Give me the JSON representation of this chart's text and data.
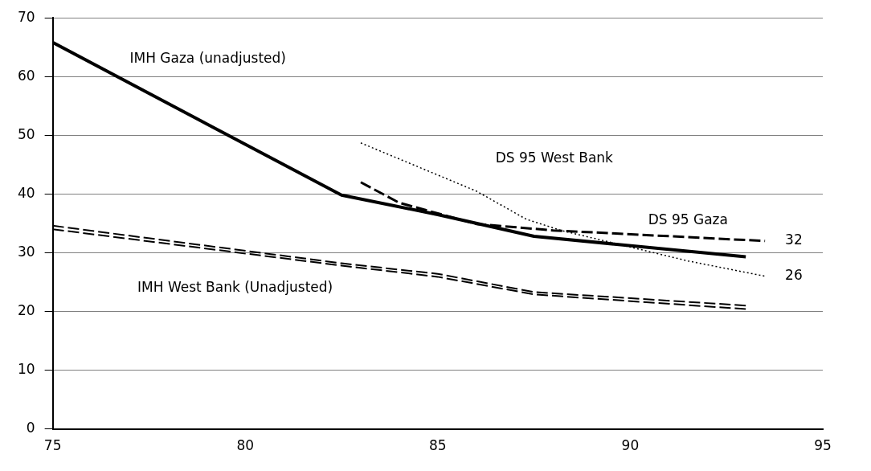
{
  "chart_data": {
    "type": "line",
    "xlim": [
      75,
      95
    ],
    "xticks": [
      75,
      80,
      85,
      90,
      95
    ],
    "ylim": [
      0,
      70
    ],
    "yticks": [
      0,
      10,
      20,
      30,
      40,
      50,
      60,
      70
    ],
    "grid": "y",
    "legend": false,
    "marker": "none",
    "series": [
      {
        "name": "IMH Gaza (unadjusted)",
        "color": "#000000",
        "line_style": "solid",
        "x": [
          75,
          82.5,
          85,
          87.5,
          93
        ],
        "values": [
          65.8,
          39.8,
          36.5,
          32.8,
          29.3
        ]
      },
      {
        "name": "DS 95 West Bank",
        "color": "#000000",
        "line_style": "dotted",
        "x": [
          83,
          86,
          87.3,
          88.2,
          91.5,
          93.5
        ],
        "values": [
          48.7,
          40.5,
          35.7,
          33.8,
          28.6,
          26
        ]
      },
      {
        "name": "DS 95 Gaza",
        "color": "#000000",
        "line_style": "dashed",
        "x": [
          83,
          84,
          86,
          88,
          93.5
        ],
        "values": [
          42,
          38.5,
          34.9,
          33.8,
          32
        ]
      },
      {
        "name": "IMH West Bank (Unadjusted)",
        "color": "#000000",
        "line_style": "dashed",
        "x": [
          75,
          82.5,
          85,
          87.5,
          93
        ],
        "values": [
          34.6,
          28.2,
          26.4,
          23.3,
          21
        ]
      },
      {
        "color": "#000000",
        "line_style": "dashed",
        "x": [
          75,
          82.5,
          85,
          87.5,
          93
        ],
        "values": [
          34,
          27.8,
          25.9,
          22.9,
          20.4
        ]
      }
    ],
    "annotations": [
      {
        "text": "32",
        "x": 93.5,
        "y": 32
      },
      {
        "text": "26",
        "x": 93.5,
        "y": 26
      }
    ]
  }
}
